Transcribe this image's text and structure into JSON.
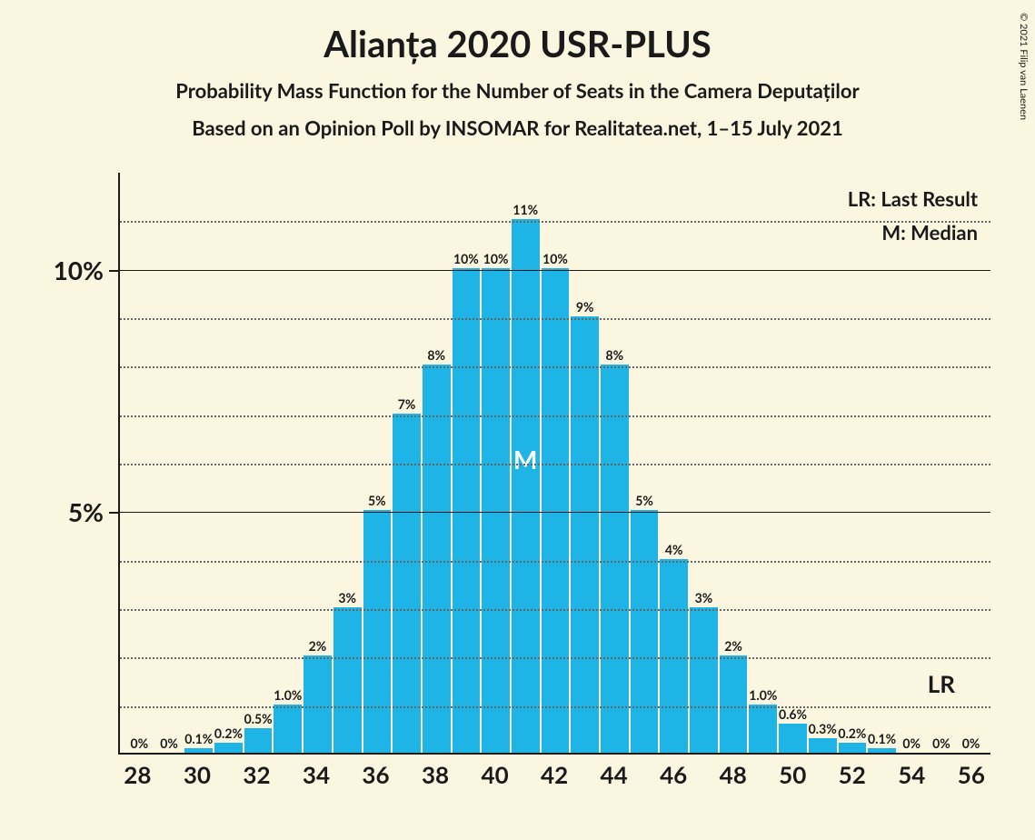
{
  "title": "Alianța 2020 USR-PLUS",
  "subtitle1": "Probability Mass Function for the Number of Seats in the Camera Deputaților",
  "subtitle2": "Based on an Opinion Poll by INSOMAR for Realitatea.net, 1–15 July 2021",
  "copyright": "© 2021 Filip van Laenen",
  "legend": {
    "lr": "LR: Last Result",
    "m": "M: Median"
  },
  "chart": {
    "type": "bar",
    "bar_color": "#1eb4e6",
    "background_color": "#fbf6df",
    "text_color": "#1a1a1a",
    "grid_major_color": "#1a1a1a",
    "grid_minor_color": "#666666",
    "y_max": 12,
    "y_major_ticks": [
      5,
      10
    ],
    "y_major_labels": [
      "5%",
      "10%"
    ],
    "y_minor_ticks": [
      1,
      2,
      3,
      4,
      6,
      7,
      8,
      9,
      11
    ],
    "categories": [
      28,
      29,
      30,
      31,
      32,
      33,
      34,
      35,
      36,
      37,
      38,
      39,
      40,
      41,
      42,
      43,
      44,
      45,
      46,
      47,
      48,
      49,
      50,
      51,
      52,
      53,
      54,
      55,
      56
    ],
    "x_labels_visible": [
      28,
      30,
      32,
      34,
      36,
      38,
      40,
      42,
      44,
      46,
      48,
      50,
      52,
      54,
      56
    ],
    "values": [
      0,
      0,
      0.1,
      0.2,
      0.5,
      1.0,
      2,
      3,
      5,
      7,
      8,
      10,
      10,
      11,
      10,
      9,
      8,
      5,
      4,
      3,
      2,
      1.0,
      0.6,
      0.3,
      0.2,
      0.1,
      0,
      0,
      0
    ],
    "bar_labels": [
      "0%",
      "0%",
      "0.1%",
      "0.2%",
      "0.5%",
      "1.0%",
      "2%",
      "3%",
      "5%",
      "7%",
      "8%",
      "10%",
      "10%",
      "11%",
      "10%",
      "9%",
      "8%",
      "5%",
      "4%",
      "3%",
      "2%",
      "1.0%",
      "0.6%",
      "0.3%",
      "0.2%",
      "0.1%",
      "0%",
      "0%",
      "0%"
    ],
    "median_index": 13,
    "median_label": "M",
    "lr_index": 27,
    "lr_label": "LR",
    "bar_label_fontsize": 14,
    "axis_label_fontsize": 28,
    "xaxis_label_fontsize": 26
  }
}
